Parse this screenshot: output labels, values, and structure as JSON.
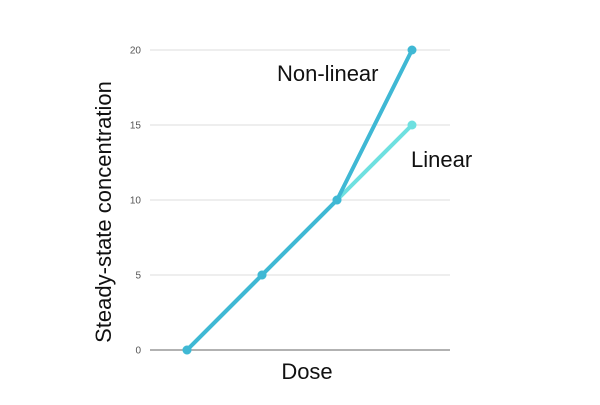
{
  "chart_data": {
    "type": "line",
    "title": "",
    "xlabel": "Dose",
    "ylabel": "Steady-state concentration",
    "x": [
      1,
      2,
      3,
      4
    ],
    "ylim": [
      0,
      20
    ],
    "yticks": [
      0,
      5,
      10,
      15,
      20
    ],
    "grid": "horizontal",
    "series": [
      {
        "key": "linear",
        "x": [
          1,
          2,
          3,
          4
        ],
        "values": [
          0,
          5,
          10,
          15
        ],
        "color": "#6ee0e0"
      },
      {
        "key": "nonlinear",
        "x": [
          1,
          2,
          3,
          4
        ],
        "values": [
          0,
          5,
          10,
          20
        ],
        "color": "#3fb8d4"
      }
    ],
    "annotations": [
      {
        "text": "Non-linear"
      },
      {
        "text": "Linear"
      }
    ]
  }
}
